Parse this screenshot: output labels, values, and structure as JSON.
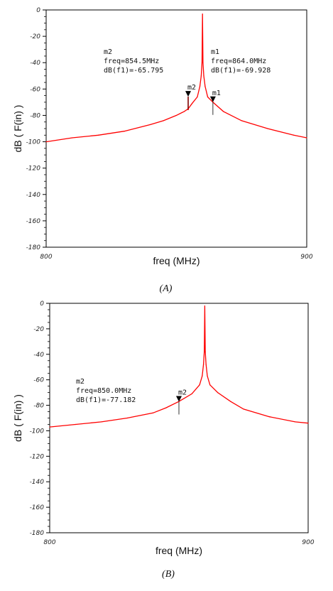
{
  "colors": {
    "trace": "#ff0000",
    "axis": "#000000",
    "marker": "#000000"
  },
  "chart_data": [
    {
      "type": "line",
      "caption": "(A)",
      "xlabel": "freq (MHz)",
      "ylabel": "dB ( F(in) )",
      "xlim": [
        800,
        900
      ],
      "ylim": [
        -180,
        0
      ],
      "x_ticks": [
        {
          "v": 800,
          "label": "800"
        },
        {
          "v": 900,
          "label": "900"
        }
      ],
      "y_ticks": [
        {
          "v": 0,
          "label": "0"
        },
        {
          "v": -20,
          "label": "-20"
        },
        {
          "v": -40,
          "label": "-40"
        },
        {
          "v": -60,
          "label": "-60"
        },
        {
          "v": -80,
          "label": "-80"
        },
        {
          "v": -100,
          "label": "-100"
        },
        {
          "v": -120,
          "label": "-120"
        },
        {
          "v": -140,
          "label": "-140"
        },
        {
          "v": -160,
          "label": "-160"
        },
        {
          "v": -180,
          "label": "-180"
        }
      ],
      "series": [
        {
          "x": [
            800,
            810,
            820,
            830,
            840,
            845,
            850,
            853,
            854.5,
            856,
            858,
            859,
            859.5,
            859.8,
            860,
            860.2,
            860.5,
            861,
            862,
            864,
            868,
            875,
            885,
            895,
            900
          ],
          "y": [
            -100,
            -97,
            -95,
            -92,
            -87,
            -84,
            -80,
            -77,
            -75,
            -71,
            -66,
            -58,
            -50,
            -40,
            -3,
            -40,
            -50,
            -58,
            -66,
            -70,
            -77,
            -84,
            -90,
            -95,
            -97
          ]
        }
      ],
      "spikes": [
        {
          "x": 854.5,
          "y": -65.795
        }
      ],
      "markers": [
        {
          "name": "m2",
          "x": 854.5,
          "y": -65.795,
          "lines": [
            "m2",
            "freq=854.5MHz",
            "dB(f1)=-65.795"
          ]
        },
        {
          "name": "m1",
          "x": 864.0,
          "y": -69.928,
          "lines": [
            "m1",
            "freq=864.0MHz",
            "dB(f1)=-69.928"
          ]
        }
      ]
    },
    {
      "type": "line",
      "caption": "(B)",
      "xlabel": "freq (MHz)",
      "ylabel": "dB ( F(in) )",
      "xlim": [
        800,
        900
      ],
      "ylim": [
        -180,
        0
      ],
      "x_ticks": [
        {
          "v": 800,
          "label": "800"
        },
        {
          "v": 900,
          "label": "900"
        }
      ],
      "y_ticks": [
        {
          "v": 0,
          "label": "0"
        },
        {
          "v": -20,
          "label": "-20"
        },
        {
          "v": -40,
          "label": "-40"
        },
        {
          "v": -60,
          "label": "-60"
        },
        {
          "v": -80,
          "label": "-80"
        },
        {
          "v": -100,
          "label": "-100"
        },
        {
          "v": -120,
          "label": "-120"
        },
        {
          "v": -140,
          "label": "-140"
        },
        {
          "v": -160,
          "label": "-160"
        },
        {
          "v": -180,
          "label": "-180"
        }
      ],
      "series": [
        {
          "x": [
            800,
            810,
            820,
            830,
            840,
            845,
            850,
            855,
            858,
            859,
            859.5,
            859.8,
            860,
            860.2,
            860.5,
            861,
            862,
            865,
            870,
            875,
            885,
            895,
            900
          ],
          "y": [
            -97,
            -95,
            -93,
            -90,
            -86,
            -82,
            -77,
            -71,
            -64,
            -57,
            -48,
            -38,
            -2,
            -38,
            -48,
            -57,
            -64,
            -70,
            -77,
            -83,
            -89,
            -93,
            -94
          ]
        }
      ],
      "spikes": [],
      "markers": [
        {
          "name": "m2",
          "x": 850.0,
          "y": -77.182,
          "lines": [
            "m2",
            "freq=850.0MHz",
            "dB(f1)=-77.182"
          ]
        }
      ]
    }
  ]
}
